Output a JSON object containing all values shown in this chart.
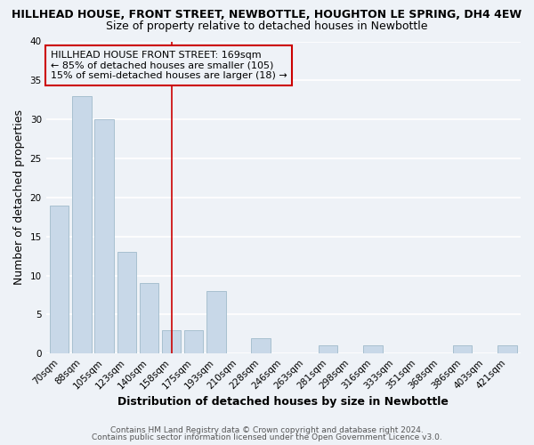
{
  "title_line1": "HILLHEAD HOUSE, FRONT STREET, NEWBOTTLE, HOUGHTON LE SPRING, DH4 4EW",
  "title_line2": "Size of property relative to detached houses in Newbottle",
  "xlabel": "Distribution of detached houses by size in Newbottle",
  "ylabel": "Number of detached properties",
  "bar_labels": [
    "70sqm",
    "88sqm",
    "105sqm",
    "123sqm",
    "140sqm",
    "158sqm",
    "175sqm",
    "193sqm",
    "210sqm",
    "228sqm",
    "246sqm",
    "263sqm",
    "281sqm",
    "298sqm",
    "316sqm",
    "333sqm",
    "351sqm",
    "368sqm",
    "386sqm",
    "403sqm",
    "421sqm"
  ],
  "bar_values": [
    19,
    33,
    30,
    13,
    9,
    3,
    3,
    8,
    0,
    2,
    0,
    0,
    1,
    0,
    1,
    0,
    0,
    0,
    1,
    0,
    1
  ],
  "bar_color": "#c8d8e8",
  "bar_edge_color": "#a8c0d0",
  "highlight_bar_index": 5,
  "highlight_edge_color": "#cc0000",
  "annotation_text": "HILLHEAD HOUSE FRONT STREET: 169sqm\n← 85% of detached houses are smaller (105)\n15% of semi-detached houses are larger (18) →",
  "annotation_box_edge": "#cc0000",
  "vline_color": "#cc0000",
  "ylim": [
    0,
    40
  ],
  "yticks": [
    0,
    5,
    10,
    15,
    20,
    25,
    30,
    35,
    40
  ],
  "footnote1": "Contains HM Land Registry data © Crown copyright and database right 2024.",
  "footnote2": "Contains public sector information licensed under the Open Government Licence v3.0.",
  "background_color": "#eef2f7",
  "grid_color": "#ffffff",
  "title_fontsize": 9,
  "subtitle_fontsize": 9,
  "axis_label_fontsize": 9,
  "tick_fontsize": 7.5,
  "annotation_fontsize": 8,
  "footnote_fontsize": 6.5
}
